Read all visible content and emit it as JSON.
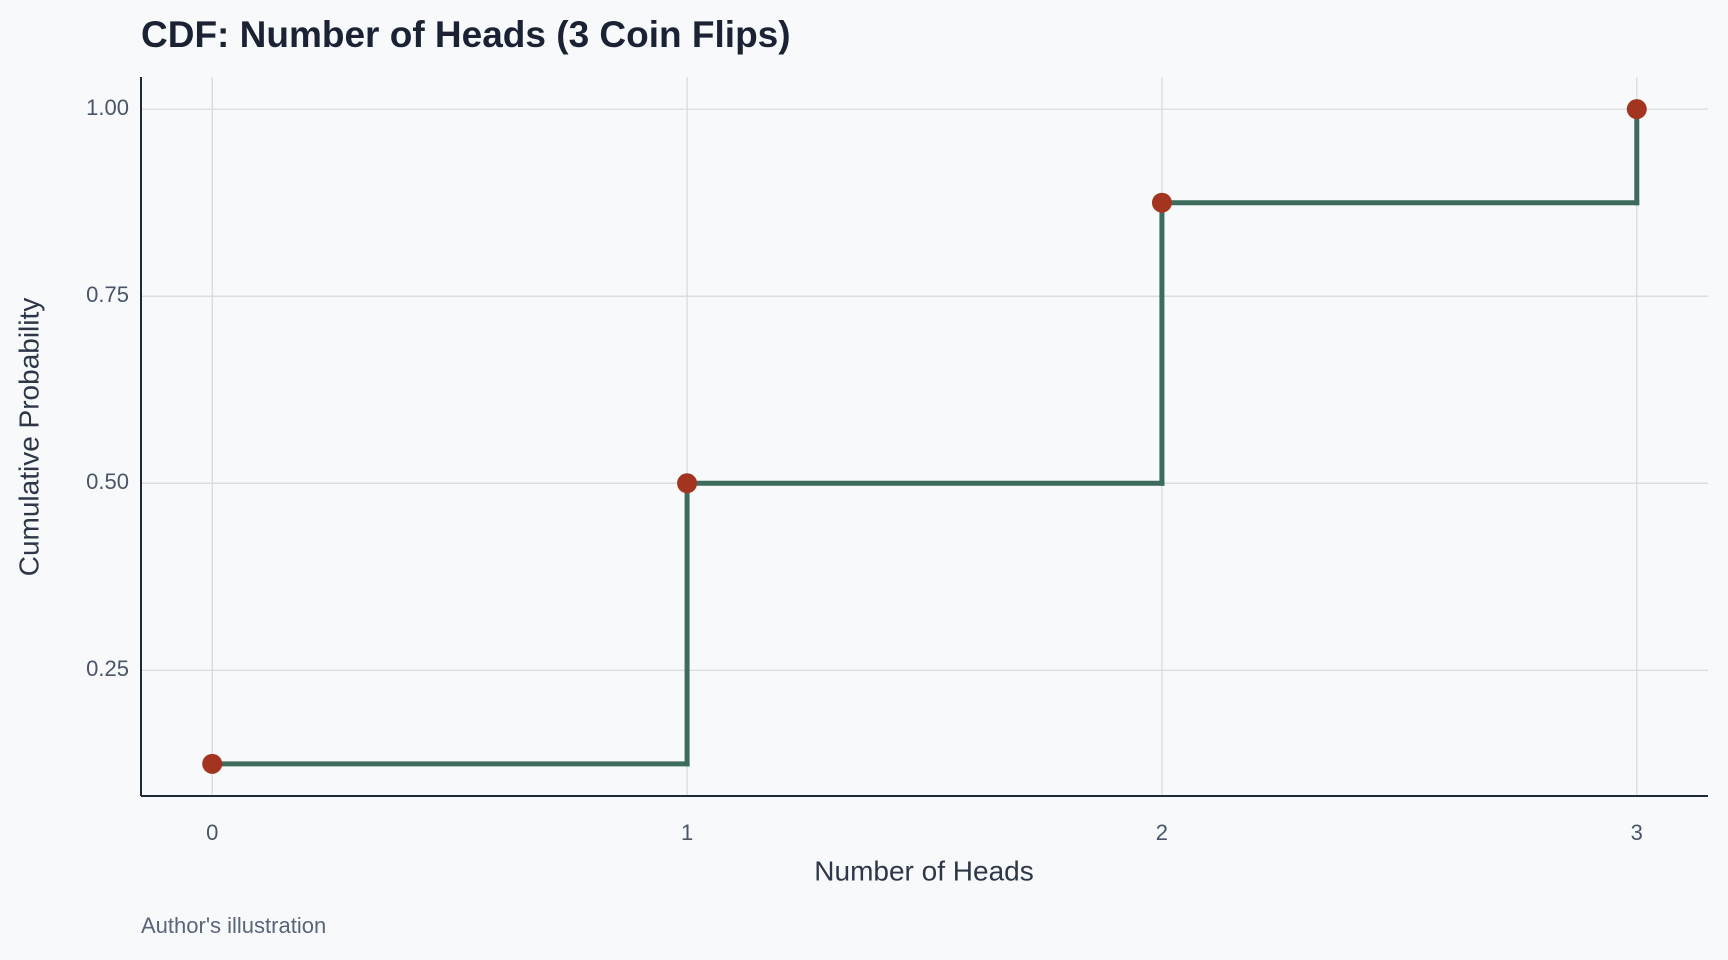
{
  "chart_data": {
    "type": "step",
    "step_where": "post",
    "title": "CDF: Number of Heads (3 Coin Flips)",
    "x_label": "Number of Heads",
    "y_label": "Cumulative Probability",
    "caption": "Author's illustration",
    "x": [
      0,
      1,
      2,
      3
    ],
    "values": [
      0.125,
      0.5,
      0.875,
      1
    ],
    "line_color": "#3d6b5c",
    "point_color": "#a33520",
    "xlim": [
      -0.15,
      3.15
    ],
    "xticks": [
      0,
      1,
      2,
      3
    ],
    "ylim": [
      0.082,
      1.043
    ],
    "yticks": [
      {
        "value": 0.25,
        "label": "0.25"
      },
      {
        "value": 0.5,
        "label": "0.50"
      },
      {
        "value": 0.75,
        "label": "0.75"
      },
      {
        "value": 1,
        "label": "1.00"
      }
    ],
    "grid": true
  }
}
